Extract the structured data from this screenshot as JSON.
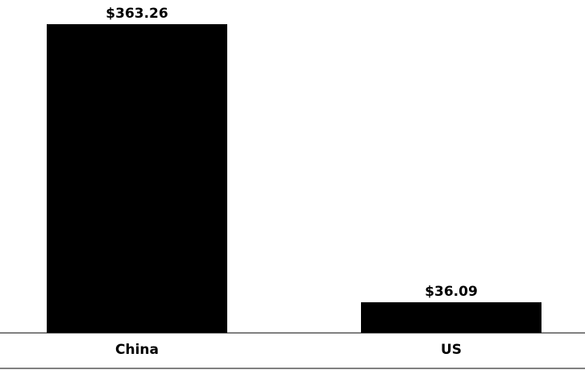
{
  "chart_data": {
    "type": "bar",
    "categories": [
      "China",
      "US"
    ],
    "values": [
      363.26,
      36.09
    ],
    "value_labels": [
      "$363.26",
      "$36.09"
    ],
    "color": "#000000"
  }
}
